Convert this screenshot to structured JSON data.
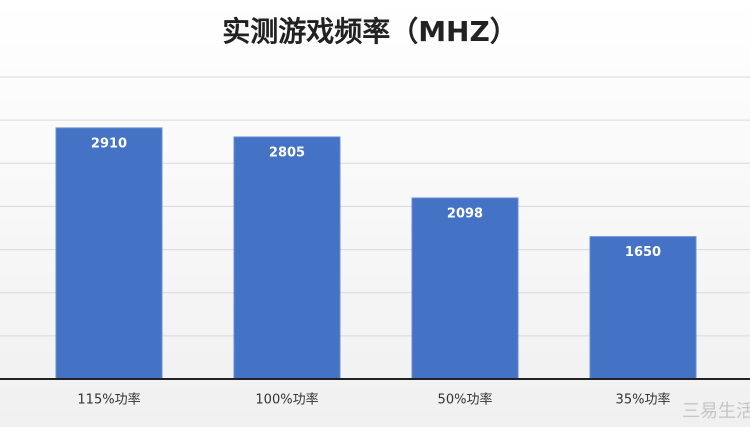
{
  "chart_data": {
    "type": "bar",
    "title": "实测游戏频率（MHZ）",
    "categories": [
      "115%功率",
      "100%功率",
      "50%功率",
      "35%功率"
    ],
    "values": [
      2910,
      2805,
      2098,
      1650
    ],
    "color": "#4472c4",
    "ylim": [
      0,
      3500
    ],
    "yticks": [
      0,
      500,
      1000,
      1500,
      2000,
      2500,
      3000,
      3500
    ],
    "grid": true,
    "watermark": "三易生活"
  }
}
